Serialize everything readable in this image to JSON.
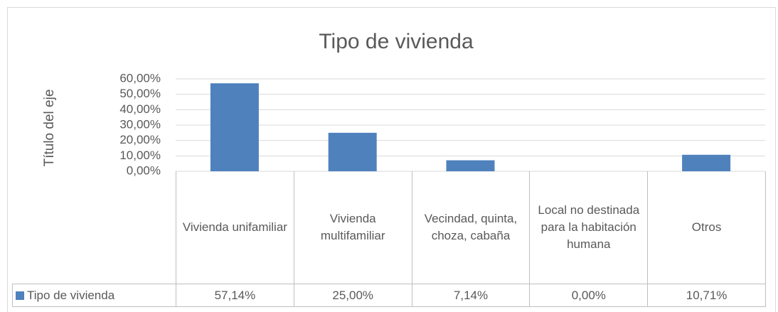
{
  "chart_data": {
    "type": "bar",
    "title": "Tipo de vivienda",
    "y_axis_label": "Título del eje",
    "categories": [
      "Vivienda unifamiliar",
      "Vivienda multifamiliar",
      "Vecindad, quinta, choza, cabaña",
      "Local no destinada para la habitación humana",
      "Otros"
    ],
    "series": [
      {
        "name": "Tipo de vivienda",
        "color": "#4f81bd",
        "values": [
          57.14,
          25.0,
          7.14,
          0.0,
          10.71
        ],
        "value_labels": [
          "57,14%",
          "25,00%",
          "7,14%",
          "0,00%",
          "10,71%"
        ]
      }
    ],
    "ylim": [
      0,
      60
    ],
    "yticks": [
      {
        "value": 0,
        "label": "0,00%"
      },
      {
        "value": 10,
        "label": "10,00%"
      },
      {
        "value": 20,
        "label": "20,00%"
      },
      {
        "value": 30,
        "label": "30,00%"
      },
      {
        "value": 40,
        "label": "40,00%"
      },
      {
        "value": 50,
        "label": "50,00%"
      },
      {
        "value": 60,
        "label": "60,00%"
      }
    ],
    "grid": true,
    "data_table": true
  }
}
